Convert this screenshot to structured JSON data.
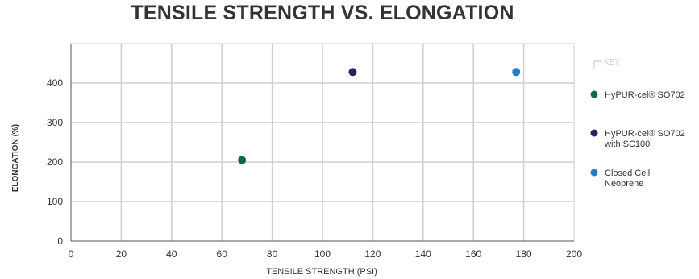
{
  "chart_data": {
    "type": "scatter",
    "title": "TENSILE STRENGTH VS. ELONGATION",
    "xlabel": "TENSILE STRENGTH (PSI)",
    "ylabel": "ELONGATION (%)",
    "xlim": [
      0,
      200
    ],
    "ylim": [
      0,
      500
    ],
    "x_ticks": [
      "0",
      "20",
      "40",
      "60",
      "80",
      "100",
      "120",
      "140",
      "160",
      "180",
      "200"
    ],
    "y_ticks": [
      "0",
      "100",
      "200",
      "300",
      "400"
    ],
    "grid": true,
    "legend": {
      "title": "KEY",
      "position": "right"
    },
    "series": [
      {
        "name": [
          "HyPUR-cel® SO702"
        ],
        "color": "#0b6b47",
        "points": [
          {
            "x": 68,
            "y": 205
          }
        ]
      },
      {
        "name": [
          "HyPUR-cel® SO702",
          "with SC100"
        ],
        "color": "#27235e",
        "points": [
          {
            "x": 112,
            "y": 428
          }
        ]
      },
      {
        "name": [
          "Closed Cell",
          "Neoprene"
        ],
        "color": "#1b7fc4",
        "points": [
          {
            "x": 177,
            "y": 428
          }
        ]
      }
    ]
  }
}
